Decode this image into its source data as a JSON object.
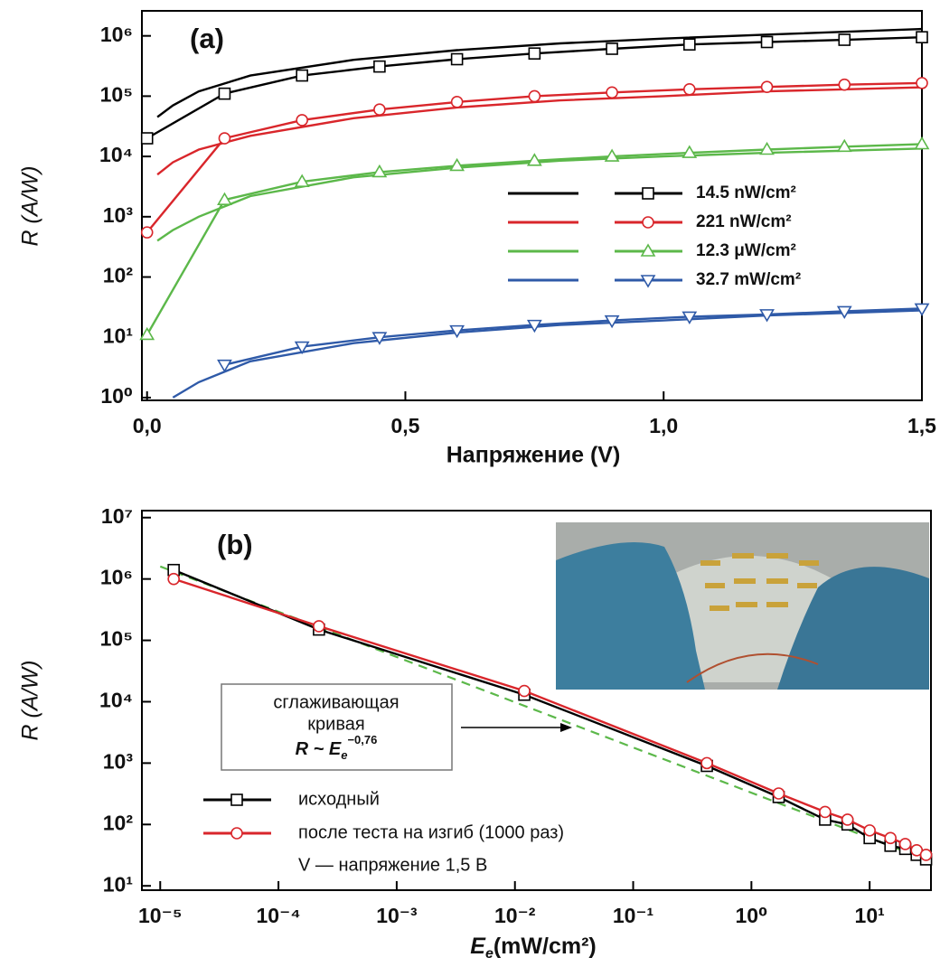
{
  "chart_data": [
    {
      "type": "line",
      "panel_label": "(a)",
      "x_label": "Напряжение (V)",
      "y_label": "R (A/W)",
      "xscale": "linear",
      "yscale": "log",
      "xlim": [
        -0.01,
        1.5
      ],
      "ylim": [
        0.9,
        2600000
      ],
      "xticks": [
        {
          "value": 0,
          "label": "0,0"
        },
        {
          "value": 0.5,
          "label": "0,5"
        },
        {
          "value": 1,
          "label": "1,0"
        },
        {
          "value": 1.5,
          "label": "1,5"
        }
      ],
      "yticks": [
        {
          "value": 1,
          "label": "10⁰"
        },
        {
          "value": 10,
          "label": "10¹"
        },
        {
          "value": 100,
          "label": "10²"
        },
        {
          "value": 1000,
          "label": "10³"
        },
        {
          "value": 10000,
          "label": "10⁴"
        },
        {
          "value": 100000,
          "label": "10⁵"
        },
        {
          "value": 1000000,
          "label": "10⁶"
        }
      ],
      "x": [
        0,
        0.15,
        0.3,
        0.45,
        0.6,
        0.75,
        0.9,
        1.05,
        1.2,
        1.35,
        1.5
      ],
      "line_x": [
        0.02,
        0.05,
        0.1,
        0.2,
        0.4,
        0.6,
        0.8,
        1.0,
        1.2,
        1.5
      ],
      "series": [
        {
          "name": "14.5 nW/cm²",
          "color": "#000000",
          "marker": "square",
          "values": [
            20000,
            110000,
            220000,
            310000,
            410000,
            510000,
            610000,
            720000,
            790000,
            860000,
            950000
          ],
          "line_values": [
            45000,
            70000,
            120000,
            220000,
            400000,
            580000,
            750000,
            900000,
            1050000,
            1300000
          ]
        },
        {
          "name": "221  nW/cm²",
          "color": "#d9262b",
          "marker": "circle",
          "values": [
            550,
            20000,
            40000,
            60000,
            80000,
            100000,
            115000,
            130000,
            142000,
            155000,
            165000
          ],
          "line_values": [
            5000,
            8000,
            13000,
            22000,
            43000,
            65000,
            85000,
            100000,
            120000,
            140000
          ]
        },
        {
          "name": "12.3 μW/cm²",
          "color": "#5cb84a",
          "marker": "triangle-up",
          "values": [
            11,
            1900,
            3800,
            5500,
            7000,
            8500,
            10000,
            11500,
            13000,
            14500,
            16000
          ],
          "line_values": [
            400,
            600,
            1000,
            2200,
            4500,
            6500,
            8500,
            10000,
            11500,
            13500
          ]
        },
        {
          "name": "32.7 mW/cm²",
          "color": "#2f5aa8",
          "marker": "triangle-down",
          "values": [
            null,
            3.5,
            7,
            10,
            13,
            16,
            19,
            22,
            24,
            27,
            30
          ],
          "line_values": [
            null,
            1.0,
            1.8,
            4,
            8,
            12,
            16,
            19,
            23,
            28
          ]
        }
      ]
    },
    {
      "type": "line",
      "panel_label": "(b)",
      "x_label": {
        "base": "E",
        "sub": "e",
        "rest": "(mW/cm²)"
      },
      "y_label": "R (A/W)",
      "xscale": "log",
      "yscale": "log",
      "xlim": [
        7e-06,
        33
      ],
      "ylim": [
        8.5,
        13000000
      ],
      "xticks": [
        {
          "value": 1e-05,
          "label": "10⁻⁵"
        },
        {
          "value": 0.0001,
          "label": "10⁻⁴"
        },
        {
          "value": 0.001,
          "label": "10⁻³"
        },
        {
          "value": 0.01,
          "label": "10⁻²"
        },
        {
          "value": 0.1,
          "label": "10⁻¹"
        },
        {
          "value": 1,
          "label": "10⁰"
        },
        {
          "value": 10,
          "label": "10¹"
        }
      ],
      "yticks": [
        {
          "value": 10,
          "label": "10¹"
        },
        {
          "value": 100,
          "label": "10²"
        },
        {
          "value": 1000,
          "label": "10³"
        },
        {
          "value": 10000,
          "label": "10⁴"
        },
        {
          "value": 100000,
          "label": "10⁵"
        },
        {
          "value": 1000000,
          "label": "10⁶"
        },
        {
          "value": 10000000,
          "label": "10⁷"
        }
      ],
      "x": [
        1.3e-05,
        0.00022,
        0.012,
        0.42,
        1.7,
        4.2,
        6.5,
        10,
        15,
        20,
        25,
        30
      ],
      "series": [
        {
          "name": "исходный",
          "color": "#000000",
          "marker": "square",
          "values": [
            1400000,
            150000,
            13000,
            900,
            280,
            120,
            100,
            60,
            45,
            40,
            32,
            27
          ]
        },
        {
          "name": "после теста на изгиб (1000 раз)",
          "color": "#d9262b",
          "marker": "circle",
          "values": [
            1000000,
            170000,
            15000,
            1000,
            320,
            160,
            120,
            80,
            60,
            48,
            38,
            32
          ]
        }
      ],
      "fit": {
        "color": "#5cb84a",
        "x": [
          1e-05,
          33
        ],
        "values": [
          1600000,
          25
        ]
      },
      "annotation": {
        "lines": [
          "сглаживающая",
          "кривая"
        ],
        "formula": {
          "base": "R ~ E",
          "sub": "e",
          "sup": "−0,76"
        }
      },
      "note": "V — напряжение 1,5 В"
    }
  ]
}
